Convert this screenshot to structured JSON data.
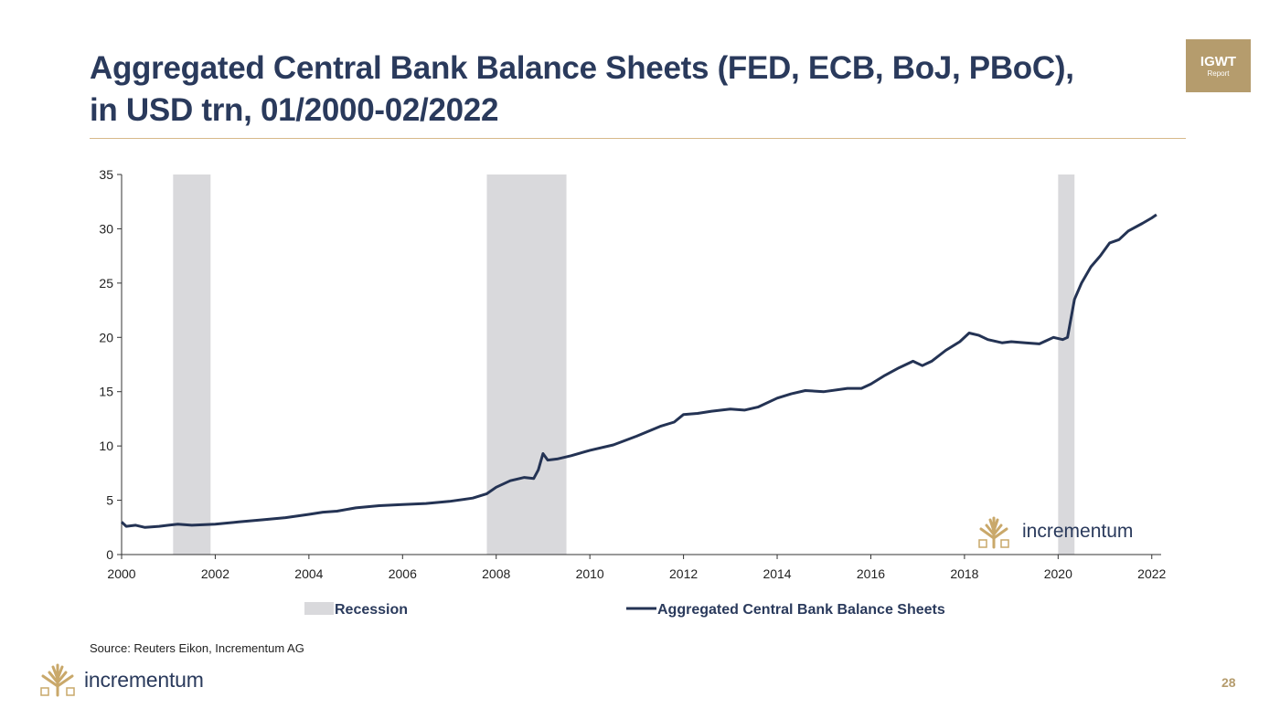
{
  "slide": {
    "title_line1": "Aggregated Central Bank Balance Sheets (FED, ECB, BoJ, PBoC),",
    "title_line2": "in USD trn, 01/2000-02/2022",
    "badge_main": "IGWT",
    "badge_sub": "Report",
    "source": "Source: Reuters Eikon, Incrementum AG",
    "brand": "incrementum",
    "page_number": "28",
    "colors": {
      "title": "#2a3a5c",
      "accent": "#b59c6d",
      "rule": "#d7b98a"
    }
  },
  "chart_data": {
    "type": "line",
    "title": "",
    "xlabel": "",
    "ylabel": "",
    "xlim": [
      2000,
      2022.2
    ],
    "ylim": [
      0,
      35
    ],
    "x_ticks": [
      2000,
      2002,
      2004,
      2006,
      2008,
      2010,
      2012,
      2014,
      2016,
      2018,
      2020,
      2022
    ],
    "y_ticks": [
      0,
      5,
      10,
      15,
      20,
      25,
      30,
      35
    ],
    "grid": false,
    "legend": {
      "position": "bottom"
    },
    "watermark": "incrementum",
    "series": [
      {
        "name": "Aggregated Central Bank Balance Sheets",
        "color": "#243354",
        "x": [
          2000.0,
          2000.1,
          2000.3,
          2000.5,
          2000.8,
          2001.0,
          2001.2,
          2001.5,
          2002.0,
          2002.5,
          2003.0,
          2003.5,
          2004.0,
          2004.3,
          2004.6,
          2005.0,
          2005.5,
          2006.0,
          2006.5,
          2007.0,
          2007.5,
          2007.8,
          2008.0,
          2008.3,
          2008.6,
          2008.8,
          2008.9,
          2009.0,
          2009.1,
          2009.3,
          2009.6,
          2010.0,
          2010.5,
          2011.0,
          2011.5,
          2011.8,
          2012.0,
          2012.3,
          2012.6,
          2013.0,
          2013.3,
          2013.6,
          2014.0,
          2014.3,
          2014.6,
          2015.0,
          2015.5,
          2015.8,
          2016.0,
          2016.3,
          2016.6,
          2016.9,
          2017.1,
          2017.3,
          2017.6,
          2017.9,
          2018.1,
          2018.3,
          2018.5,
          2018.8,
          2019.0,
          2019.3,
          2019.6,
          2019.9,
          2020.1,
          2020.2,
          2020.35,
          2020.5,
          2020.7,
          2020.9,
          2021.1,
          2021.3,
          2021.5,
          2021.8,
          2022.0,
          2022.1
        ],
        "values": [
          3.0,
          2.6,
          2.7,
          2.5,
          2.6,
          2.7,
          2.8,
          2.7,
          2.8,
          3.0,
          3.2,
          3.4,
          3.7,
          3.9,
          4.0,
          4.3,
          4.5,
          4.6,
          4.7,
          4.9,
          5.2,
          5.6,
          6.2,
          6.8,
          7.1,
          7.0,
          7.8,
          9.3,
          8.7,
          8.8,
          9.1,
          9.6,
          10.1,
          10.9,
          11.8,
          12.2,
          12.9,
          13.0,
          13.2,
          13.4,
          13.3,
          13.6,
          14.4,
          14.8,
          15.1,
          15.0,
          15.3,
          15.3,
          15.7,
          16.5,
          17.2,
          17.8,
          17.4,
          17.8,
          18.8,
          19.6,
          20.4,
          20.2,
          19.8,
          19.5,
          19.6,
          19.5,
          19.4,
          20.0,
          19.8,
          20.0,
          23.5,
          25.0,
          26.5,
          27.5,
          28.7,
          29.0,
          29.8,
          30.5,
          31.0,
          31.3
        ]
      }
    ],
    "recessions": [
      {
        "name": "Recession",
        "start": 2001.1,
        "end": 2001.9,
        "color": "#d9d9dc"
      },
      {
        "name": "Recession",
        "start": 2007.8,
        "end": 2009.5,
        "color": "#d9d9dc"
      },
      {
        "name": "Recession",
        "start": 2020.0,
        "end": 2020.35,
        "color": "#d9d9dc"
      }
    ]
  }
}
